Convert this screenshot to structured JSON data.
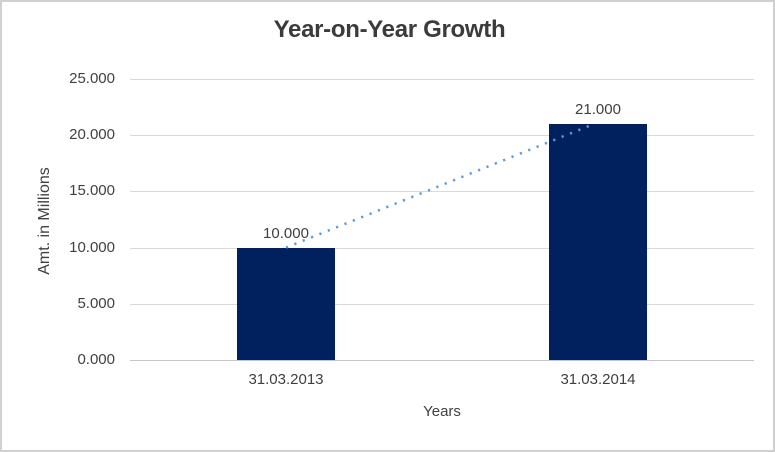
{
  "window": {
    "background": "#ffffff",
    "border_color": "#d1d0d0"
  },
  "chart_data": {
    "type": "bar",
    "title": "Year-on-Year Growth",
    "xlabel": "Years",
    "ylabel": "Amt. in Millions",
    "categories": [
      "31.03.2013",
      "31.03.2014"
    ],
    "series": [
      {
        "name": "Amt. in Millions",
        "values": [
          10,
          21
        ],
        "value_labels": [
          "10.000",
          "21.000"
        ]
      }
    ],
    "ylim": [
      0,
      25
    ],
    "ytick_step": 5,
    "ytick_labels": [
      "25.000",
      "20.000",
      "15.000",
      "10.000",
      "5.000",
      "0.000"
    ],
    "grid": "horizontal",
    "legend_position": "none",
    "bar_color": "#01215e",
    "gridline_color": "#d9d9d9",
    "label_color": "#404040",
    "title_color": "#3b3b3b",
    "trendline": {
      "style": "dotted",
      "color": "#5b9bd5",
      "from_category": "31.03.2013",
      "to_category": "31.03.2014",
      "from_value": 10,
      "to_value": 21
    }
  }
}
